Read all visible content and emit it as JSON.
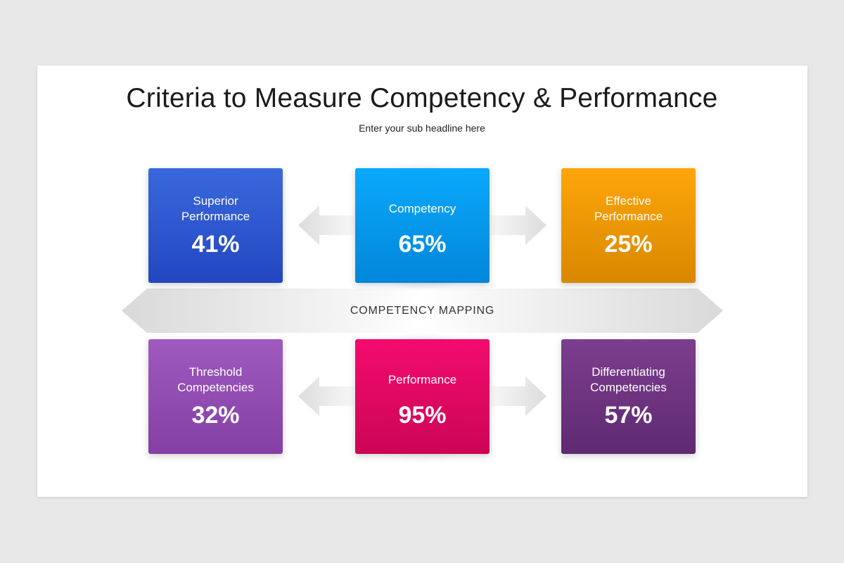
{
  "title": "Criteria to Measure Competency & Performance",
  "subtitle": "Enter your sub headline here",
  "band_label": "COMPETENCY MAPPING",
  "top_row": [
    {
      "label_lines": [
        "Superior",
        "Performance"
      ],
      "value": "41%",
      "color": "#2f58d0"
    },
    {
      "label_lines": [
        "Competency"
      ],
      "value": "65%",
      "color": "#0399ed"
    },
    {
      "label_lines": [
        "Effective",
        "Performance"
      ],
      "value": "25%",
      "color": "#f09a05"
    }
  ],
  "bottom_row": [
    {
      "label_lines": [
        "Threshold",
        "Competencies"
      ],
      "value": "32%",
      "color": "#924cb3"
    },
    {
      "label_lines": [
        "Performance"
      ],
      "value": "95%",
      "color": "#e60862"
    },
    {
      "label_lines": [
        "Differentiating",
        "Competencies"
      ],
      "value": "57%",
      "color": "#6e3480"
    }
  ]
}
